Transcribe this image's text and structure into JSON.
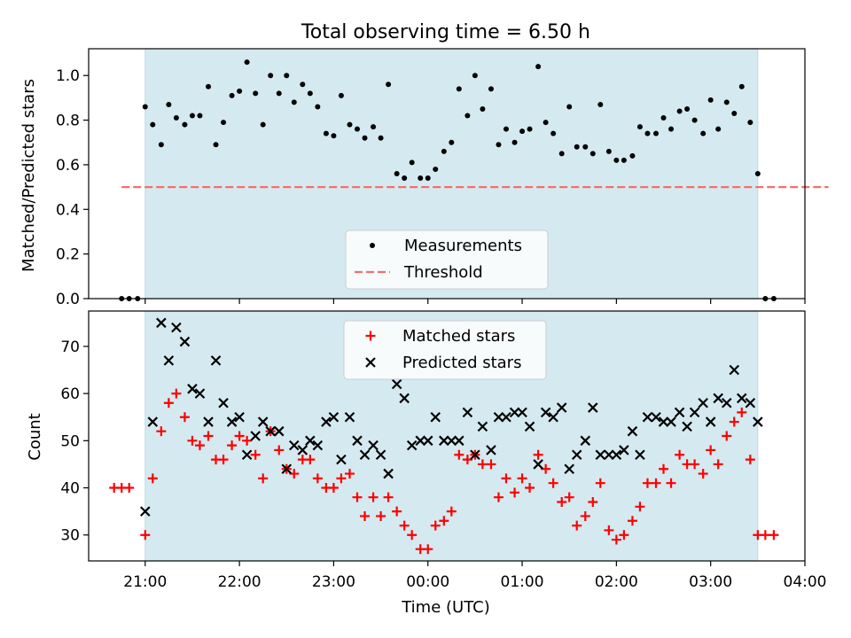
{
  "figure": {
    "title": "Total observing time = 6.50 h",
    "xlabel": "Time (UTC)",
    "x_ticks": [
      "21:00",
      "22:00",
      "23:00",
      "00:00",
      "01:00",
      "02:00",
      "03:00",
      "04:00"
    ],
    "x_tick_values": [
      21.0,
      22.0,
      23.0,
      24.0,
      25.0,
      26.0,
      27.0,
      28.0
    ],
    "xlim": [
      20.4,
      28.0
    ],
    "shade_span": [
      21.0,
      27.5
    ],
    "shade_color": "#d4eaf0"
  },
  "chart_data": [
    {
      "type": "scatter",
      "ylabel": "Matched/Predicted stars",
      "ylim": [
        0.0,
        1.12
      ],
      "y_ticks": [
        "0.0",
        "0.2",
        "0.4",
        "0.6",
        "0.8",
        "1.0"
      ],
      "y_tick_values": [
        0.0,
        0.2,
        0.4,
        0.6,
        0.8,
        1.0
      ],
      "legend_position": "lower-center",
      "threshold": {
        "label": "Threshold",
        "value": 0.5,
        "x_range": [
          20.75,
          28.25
        ],
        "color": "#f07070"
      },
      "series": [
        {
          "name": "Measurements",
          "marker": "dot",
          "color": "#000000",
          "x": [
            20.75,
            20.83,
            20.92,
            21.0,
            21.08,
            21.17,
            21.25,
            21.33,
            21.42,
            21.5,
            21.58,
            21.67,
            21.75,
            21.83,
            21.92,
            22.0,
            22.08,
            22.17,
            22.25,
            22.33,
            22.42,
            22.5,
            22.58,
            22.67,
            22.75,
            22.83,
            22.92,
            23.0,
            23.08,
            23.17,
            23.25,
            23.33,
            23.42,
            23.5,
            23.58,
            23.67,
            23.75,
            23.83,
            23.92,
            24.0,
            24.08,
            24.17,
            24.25,
            24.33,
            24.42,
            24.5,
            24.58,
            24.67,
            24.75,
            24.83,
            24.92,
            25.0,
            25.08,
            25.17,
            25.25,
            25.33,
            25.42,
            25.5,
            25.58,
            25.67,
            25.75,
            25.83,
            25.92,
            26.0,
            26.08,
            26.17,
            26.25,
            26.33,
            26.42,
            26.5,
            26.58,
            26.67,
            26.75,
            26.83,
            26.92,
            27.0,
            27.08,
            27.17,
            27.25,
            27.33,
            27.42,
            27.5,
            27.58,
            27.67
          ],
          "y": [
            0.0,
            0.0,
            0.0,
            0.86,
            0.78,
            0.69,
            0.87,
            0.81,
            0.78,
            0.82,
            0.82,
            0.95,
            0.69,
            0.79,
            0.91,
            0.93,
            1.06,
            0.92,
            0.78,
            1.0,
            0.92,
            1.0,
            0.88,
            0.96,
            0.92,
            0.86,
            0.74,
            0.73,
            0.91,
            0.78,
            0.76,
            0.72,
            0.77,
            0.72,
            0.96,
            0.56,
            0.54,
            0.61,
            0.54,
            0.54,
            0.58,
            0.66,
            0.7,
            0.94,
            0.82,
            1.0,
            0.85,
            0.94,
            0.69,
            0.76,
            0.7,
            0.75,
            0.76,
            1.04,
            0.79,
            0.74,
            0.65,
            0.86,
            0.68,
            0.68,
            0.65,
            0.87,
            0.66,
            0.62,
            0.62,
            0.64,
            0.77,
            0.74,
            0.74,
            0.81,
            0.76,
            0.84,
            0.85,
            0.8,
            0.74,
            0.89,
            0.76,
            0.88,
            0.83,
            0.95,
            0.79,
            0.56,
            0.0,
            0.0
          ]
        }
      ]
    },
    {
      "type": "scatter",
      "ylabel": "Count",
      "ylim": [
        24.5,
        77.5
      ],
      "y_ticks": [
        "30",
        "40",
        "50",
        "60",
        "70"
      ],
      "y_tick_values": [
        30,
        40,
        50,
        60,
        70
      ],
      "legend_position": "upper-center",
      "series": [
        {
          "name": "Matched stars",
          "marker": "plus",
          "color": "#ff0000",
          "x": [
            20.67,
            20.75,
            20.83,
            21.0,
            21.08,
            21.17,
            21.25,
            21.33,
            21.42,
            21.5,
            21.58,
            21.67,
            21.75,
            21.83,
            21.92,
            22.0,
            22.08,
            22.17,
            22.25,
            22.33,
            22.42,
            22.5,
            22.58,
            22.67,
            22.75,
            22.83,
            22.92,
            23.0,
            23.08,
            23.17,
            23.25,
            23.33,
            23.42,
            23.5,
            23.58,
            23.67,
            23.75,
            23.83,
            23.92,
            24.0,
            24.08,
            24.17,
            24.25,
            24.33,
            24.42,
            24.5,
            24.58,
            24.67,
            24.75,
            24.83,
            24.92,
            25.0,
            25.08,
            25.17,
            25.25,
            25.33,
            25.42,
            25.5,
            25.58,
            25.67,
            25.75,
            25.83,
            25.92,
            26.0,
            26.08,
            26.17,
            26.25,
            26.33,
            26.42,
            26.5,
            26.58,
            26.67,
            26.75,
            26.83,
            26.92,
            27.0,
            27.08,
            27.17,
            27.25,
            27.33,
            27.42,
            27.5,
            27.58,
            27.67
          ],
          "y": [
            40,
            40,
            40,
            30,
            42,
            52,
            58,
            60,
            55,
            50,
            49,
            51,
            46,
            46,
            49,
            51,
            50,
            47,
            42,
            52,
            48,
            44,
            43,
            46,
            46,
            42,
            40,
            40,
            42,
            43,
            38,
            34,
            38,
            34,
            38,
            35,
            32,
            30,
            27,
            27,
            32,
            33,
            35,
            47,
            46,
            47,
            45,
            45,
            38,
            42,
            39,
            42,
            40,
            47,
            44,
            41,
            37,
            38,
            32,
            34,
            37,
            41,
            31,
            29,
            30,
            33,
            36,
            41,
            41,
            44,
            41,
            47,
            45,
            45,
            43,
            48,
            45,
            51,
            54,
            56,
            46,
            30,
            30,
            30
          ]
        },
        {
          "name": "Predicted stars",
          "marker": "x",
          "color": "#000000",
          "x": [
            21.0,
            21.08,
            21.17,
            21.25,
            21.33,
            21.42,
            21.5,
            21.58,
            21.67,
            21.75,
            21.83,
            21.92,
            22.0,
            22.08,
            22.17,
            22.25,
            22.33,
            22.42,
            22.5,
            22.58,
            22.67,
            22.75,
            22.83,
            22.92,
            23.0,
            23.08,
            23.17,
            23.25,
            23.33,
            23.42,
            23.5,
            23.58,
            23.67,
            23.75,
            23.83,
            23.92,
            24.0,
            24.08,
            24.17,
            24.25,
            24.33,
            24.42,
            24.5,
            24.58,
            24.67,
            24.75,
            24.83,
            24.92,
            25.0,
            25.08,
            25.17,
            25.25,
            25.33,
            25.42,
            25.5,
            25.58,
            25.67,
            25.75,
            25.83,
            25.92,
            26.0,
            26.08,
            26.17,
            26.25,
            26.33,
            26.42,
            26.5,
            26.58,
            26.67,
            26.75,
            26.83,
            26.92,
            27.0,
            27.08,
            27.17,
            27.25,
            27.33,
            27.42,
            27.5
          ],
          "y": [
            35,
            54,
            75,
            67,
            74,
            71,
            61,
            60,
            54,
            67,
            58,
            54,
            55,
            47,
            51,
            54,
            52,
            52,
            44,
            49,
            48,
            50,
            49,
            54,
            55,
            46,
            55,
            50,
            47,
            49,
            47,
            43,
            62,
            59,
            49,
            50,
            50,
            55,
            50,
            50,
            50,
            56,
            47,
            53,
            48,
            55,
            55,
            56,
            56,
            53,
            45,
            56,
            55,
            57,
            44,
            47,
            50,
            57,
            47,
            47,
            47,
            48,
            52,
            47,
            55,
            55,
            54,
            54,
            56,
            53,
            56,
            58,
            54,
            59,
            58,
            65,
            59,
            58,
            54
          ]
        }
      ]
    }
  ]
}
